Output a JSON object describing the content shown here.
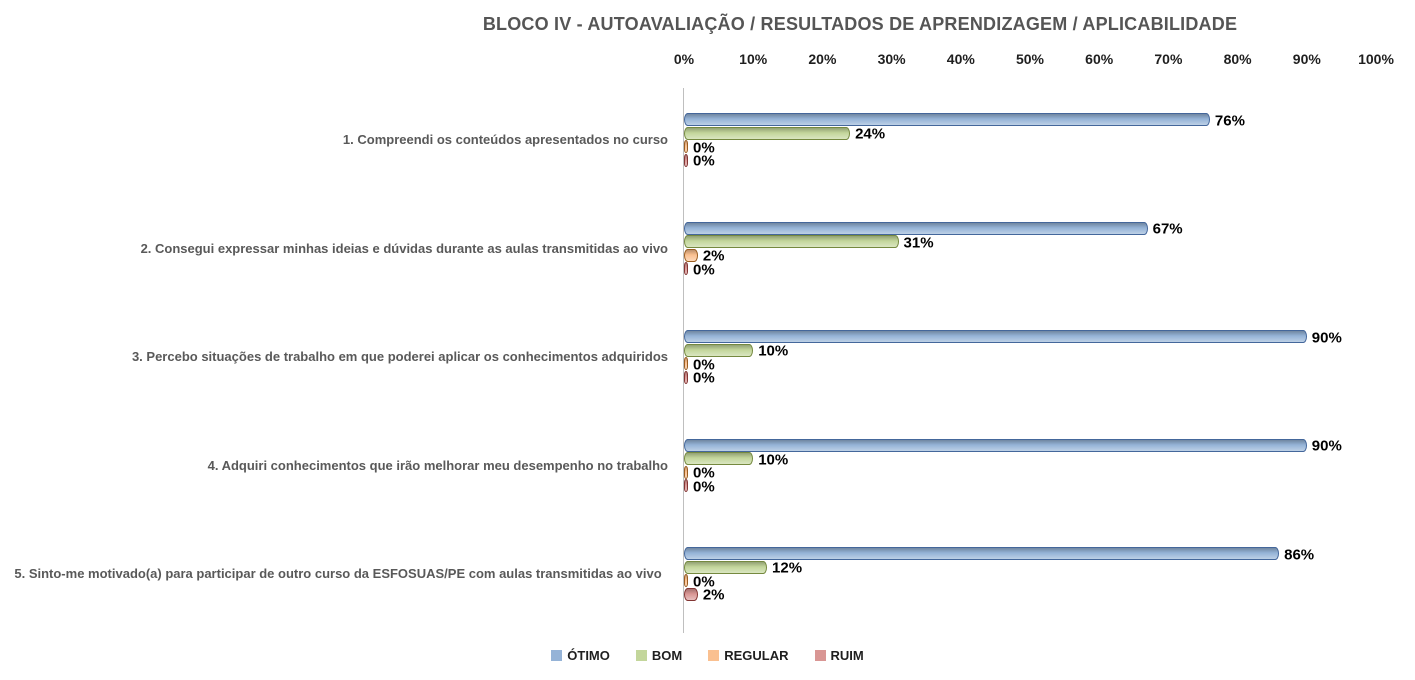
{
  "title": "BLOCO IV - AUTOAVALIAÇÃO / RESULTADOS DE APRENDIZAGEM / APLICABILIDADE",
  "chart_data": {
    "type": "bar",
    "orientation": "horizontal",
    "title": "BLOCO IV - AUTOAVALIAÇÃO / RESULTADOS DE APRENDIZAGEM / APLICABILIDADE",
    "categories": [
      "1. Compreendi os conteúdos apresentados no curso",
      "2. Consegui expressar minhas ideias e dúvidas durante as aulas transmitidas ao vivo",
      "3. Percebo situações de trabalho em que poderei aplicar os conhecimentos adquiridos",
      "4. Adquiri conhecimentos que irão melhorar meu desempenho no trabalho",
      "5. Sinto-me motivado(a) para participar de outro curso da ESFOSUAS/PE com aulas transmitidas ao vivo"
    ],
    "series": [
      {
        "name": "ÓTIMO",
        "fill": "#95B3D7",
        "border": "#44679B",
        "values": [
          76,
          67,
          90,
          90,
          86
        ]
      },
      {
        "name": "BOM",
        "fill": "#C3D69B",
        "border": "#75893F",
        "values": [
          24,
          31,
          10,
          10,
          12
        ]
      },
      {
        "name": "REGULAR",
        "fill": "#FAC090",
        "border": "#9A5D21",
        "values": [
          0,
          2,
          0,
          0,
          0
        ]
      },
      {
        "name": "RUIM",
        "fill": "#D99694",
        "border": "#823533",
        "values": [
          0,
          0,
          0,
          0,
          2
        ]
      }
    ],
    "value_label_suffix": "%",
    "x_axis": {
      "min": 0,
      "max": 100,
      "ticks": [
        "0%",
        "10%",
        "20%",
        "30%",
        "40%",
        "50%",
        "60%",
        "70%",
        "80%",
        "90%",
        "100%"
      ],
      "position": "top"
    },
    "grid": false,
    "legend": {
      "position": "bottom",
      "entries": [
        "ÓTIMO",
        "BOM",
        "REGULAR",
        "RUIM"
      ]
    }
  }
}
